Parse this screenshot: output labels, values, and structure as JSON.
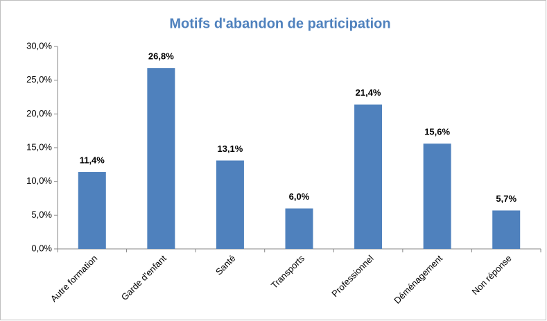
{
  "chart_data": {
    "type": "bar",
    "title": "Motifs d'abandon de participation",
    "categories": [
      "Autre formation",
      "Garde d'enfant",
      "Santé",
      "Transports",
      "Professionnel",
      "Déménagement",
      "Non réponse"
    ],
    "values": [
      11.4,
      26.8,
      13.1,
      6.0,
      21.4,
      15.6,
      5.7
    ],
    "value_labels": [
      "11,4%",
      "26,8%",
      "13,1%",
      "6,0%",
      "21,4%",
      "15,6%",
      "5,7%"
    ],
    "color": "#4f81bd",
    "ylim": [
      0,
      30
    ],
    "yticks": [
      {
        "value": 0,
        "label": "0,0%"
      },
      {
        "value": 5,
        "label": "5,0%"
      },
      {
        "value": 10,
        "label": "10,0%"
      },
      {
        "value": 15,
        "label": "15,0%"
      },
      {
        "value": 20,
        "label": "20,0%"
      },
      {
        "value": 25,
        "label": "25,0%"
      },
      {
        "value": 30,
        "label": "30,0%"
      }
    ],
    "grid": false
  }
}
